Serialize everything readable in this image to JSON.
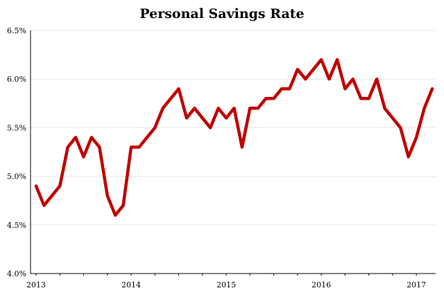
{
  "chart_data": {
    "type": "line",
    "title": "Personal Savings Rate",
    "xlabel": "",
    "ylabel": "",
    "ylim": [
      4.0,
      6.5
    ],
    "y_ticks": [
      "4.0%",
      "4.5%",
      "5.0%",
      "5.5%",
      "6.0%",
      "6.5%"
    ],
    "y_tick_values": [
      4.0,
      4.5,
      5.0,
      5.5,
      6.0,
      6.5
    ],
    "x_ticks": [
      "2013",
      "2014",
      "2015",
      "2016",
      "2017"
    ],
    "x_tick_values": [
      "2013-01",
      "2014-01",
      "2015-01",
      "2016-01",
      "2017-01"
    ],
    "xlim": [
      "2013-01",
      "2017-03"
    ],
    "grid": "horizontal",
    "line_color": "#c00000",
    "x": [
      "2013-01",
      "2013-02",
      "2013-03",
      "2013-04",
      "2013-05",
      "2013-06",
      "2013-07",
      "2013-08",
      "2013-09",
      "2013-10",
      "2013-11",
      "2013-12",
      "2014-01",
      "2014-02",
      "2014-03",
      "2014-04",
      "2014-05",
      "2014-06",
      "2014-07",
      "2014-08",
      "2014-09",
      "2014-10",
      "2014-11",
      "2014-12",
      "2015-01",
      "2015-02",
      "2015-03",
      "2015-04",
      "2015-05",
      "2015-06",
      "2015-07",
      "2015-08",
      "2015-09",
      "2015-10",
      "2015-11",
      "2015-12",
      "2016-01",
      "2016-02",
      "2016-03",
      "2016-04",
      "2016-05",
      "2016-06",
      "2016-07",
      "2016-08",
      "2016-09",
      "2016-10",
      "2016-11",
      "2016-12",
      "2017-01",
      "2017-02",
      "2017-03"
    ],
    "values": [
      4.9,
      4.7,
      4.8,
      4.9,
      5.3,
      5.4,
      5.2,
      5.4,
      5.3,
      4.8,
      4.6,
      4.7,
      5.3,
      5.3,
      5.4,
      5.5,
      5.7,
      5.8,
      5.9,
      5.6,
      5.7,
      5.6,
      5.5,
      5.7,
      5.6,
      5.7,
      5.3,
      5.7,
      5.7,
      5.8,
      5.8,
      5.9,
      5.9,
      6.1,
      6.0,
      6.1,
      6.2,
      6.0,
      6.2,
      5.9,
      6.0,
      5.8,
      5.8,
      6.0,
      5.7,
      5.6,
      5.5,
      5.2,
      5.4,
      5.7,
      5.9
    ]
  }
}
